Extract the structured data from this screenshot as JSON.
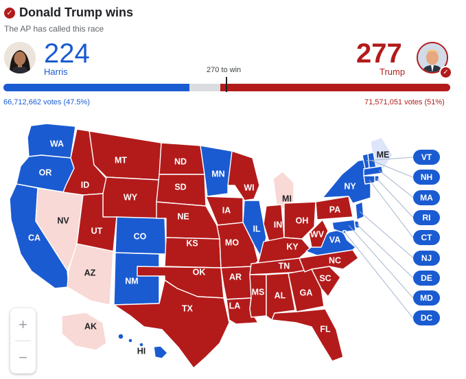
{
  "header": {
    "headline": "Donald Trump wins",
    "subhead": "The AP has called this race"
  },
  "colors": {
    "dem": "#1a5bd1",
    "rep": "#b31b1b",
    "dem_lean": "#dde5fa",
    "rep_lean": "#f8d9d5",
    "neutral": "#dadce0"
  },
  "dem": {
    "candidate": "Harris",
    "electoral_votes": "224",
    "popular_votes": "66,712,662 votes (47.5%)",
    "avatar_icon": "harris-portrait-icon"
  },
  "rep": {
    "candidate": "Trump",
    "electoral_votes": "277",
    "popular_votes": "71,571,051 votes (51%)",
    "avatar_icon": "trump-portrait-icon",
    "winner_check": "✓"
  },
  "threshold_label": "270 to win",
  "bar": {
    "dem_ev": 224,
    "rep_ev": 277,
    "total_ev": 538,
    "win_ev": 270
  },
  "states": [
    {
      "code": "WA",
      "party": "dem"
    },
    {
      "code": "OR",
      "party": "dem"
    },
    {
      "code": "CA",
      "party": "dem"
    },
    {
      "code": "NV",
      "party": "rep_lean"
    },
    {
      "code": "ID",
      "party": "rep"
    },
    {
      "code": "MT",
      "party": "rep"
    },
    {
      "code": "WY",
      "party": "rep"
    },
    {
      "code": "UT",
      "party": "rep"
    },
    {
      "code": "AZ",
      "party": "rep_lean"
    },
    {
      "code": "CO",
      "party": "dem"
    },
    {
      "code": "NM",
      "party": "dem"
    },
    {
      "code": "ND",
      "party": "rep"
    },
    {
      "code": "SD",
      "party": "rep"
    },
    {
      "code": "NE",
      "party": "rep"
    },
    {
      "code": "KS",
      "party": "rep"
    },
    {
      "code": "OK",
      "party": "rep"
    },
    {
      "code": "TX",
      "party": "rep"
    },
    {
      "code": "MN",
      "party": "dem"
    },
    {
      "code": "IA",
      "party": "rep"
    },
    {
      "code": "MO",
      "party": "rep"
    },
    {
      "code": "AR",
      "party": "rep"
    },
    {
      "code": "LA",
      "party": "rep"
    },
    {
      "code": "WI",
      "party": "rep"
    },
    {
      "code": "IL",
      "party": "dem"
    },
    {
      "code": "MI",
      "party": "rep_lean"
    },
    {
      "code": "IN",
      "party": "rep"
    },
    {
      "code": "OH",
      "party": "rep"
    },
    {
      "code": "KY",
      "party": "rep"
    },
    {
      "code": "TN",
      "party": "rep"
    },
    {
      "code": "MS",
      "party": "rep"
    },
    {
      "code": "AL",
      "party": "rep"
    },
    {
      "code": "GA",
      "party": "rep"
    },
    {
      "code": "FL",
      "party": "rep"
    },
    {
      "code": "SC",
      "party": "rep"
    },
    {
      "code": "NC",
      "party": "rep"
    },
    {
      "code": "VA",
      "party": "dem"
    },
    {
      "code": "WV",
      "party": "rep"
    },
    {
      "code": "PA",
      "party": "rep"
    },
    {
      "code": "NY",
      "party": "dem"
    },
    {
      "code": "ME",
      "party": "dem_lean"
    },
    {
      "code": "AK",
      "party": "rep_lean"
    },
    {
      "code": "HI",
      "party": "dem"
    }
  ],
  "small_states": [
    {
      "code": "VT",
      "party": "dem"
    },
    {
      "code": "NH",
      "party": "dem"
    },
    {
      "code": "MA",
      "party": "dem"
    },
    {
      "code": "RI",
      "party": "dem"
    },
    {
      "code": "CT",
      "party": "dem"
    },
    {
      "code": "NJ",
      "party": "dem"
    },
    {
      "code": "DE",
      "party": "dem"
    },
    {
      "code": "MD",
      "party": "dem"
    },
    {
      "code": "DC",
      "party": "dem"
    }
  ],
  "zoom": {
    "in_label": "+",
    "out_label": "−"
  }
}
